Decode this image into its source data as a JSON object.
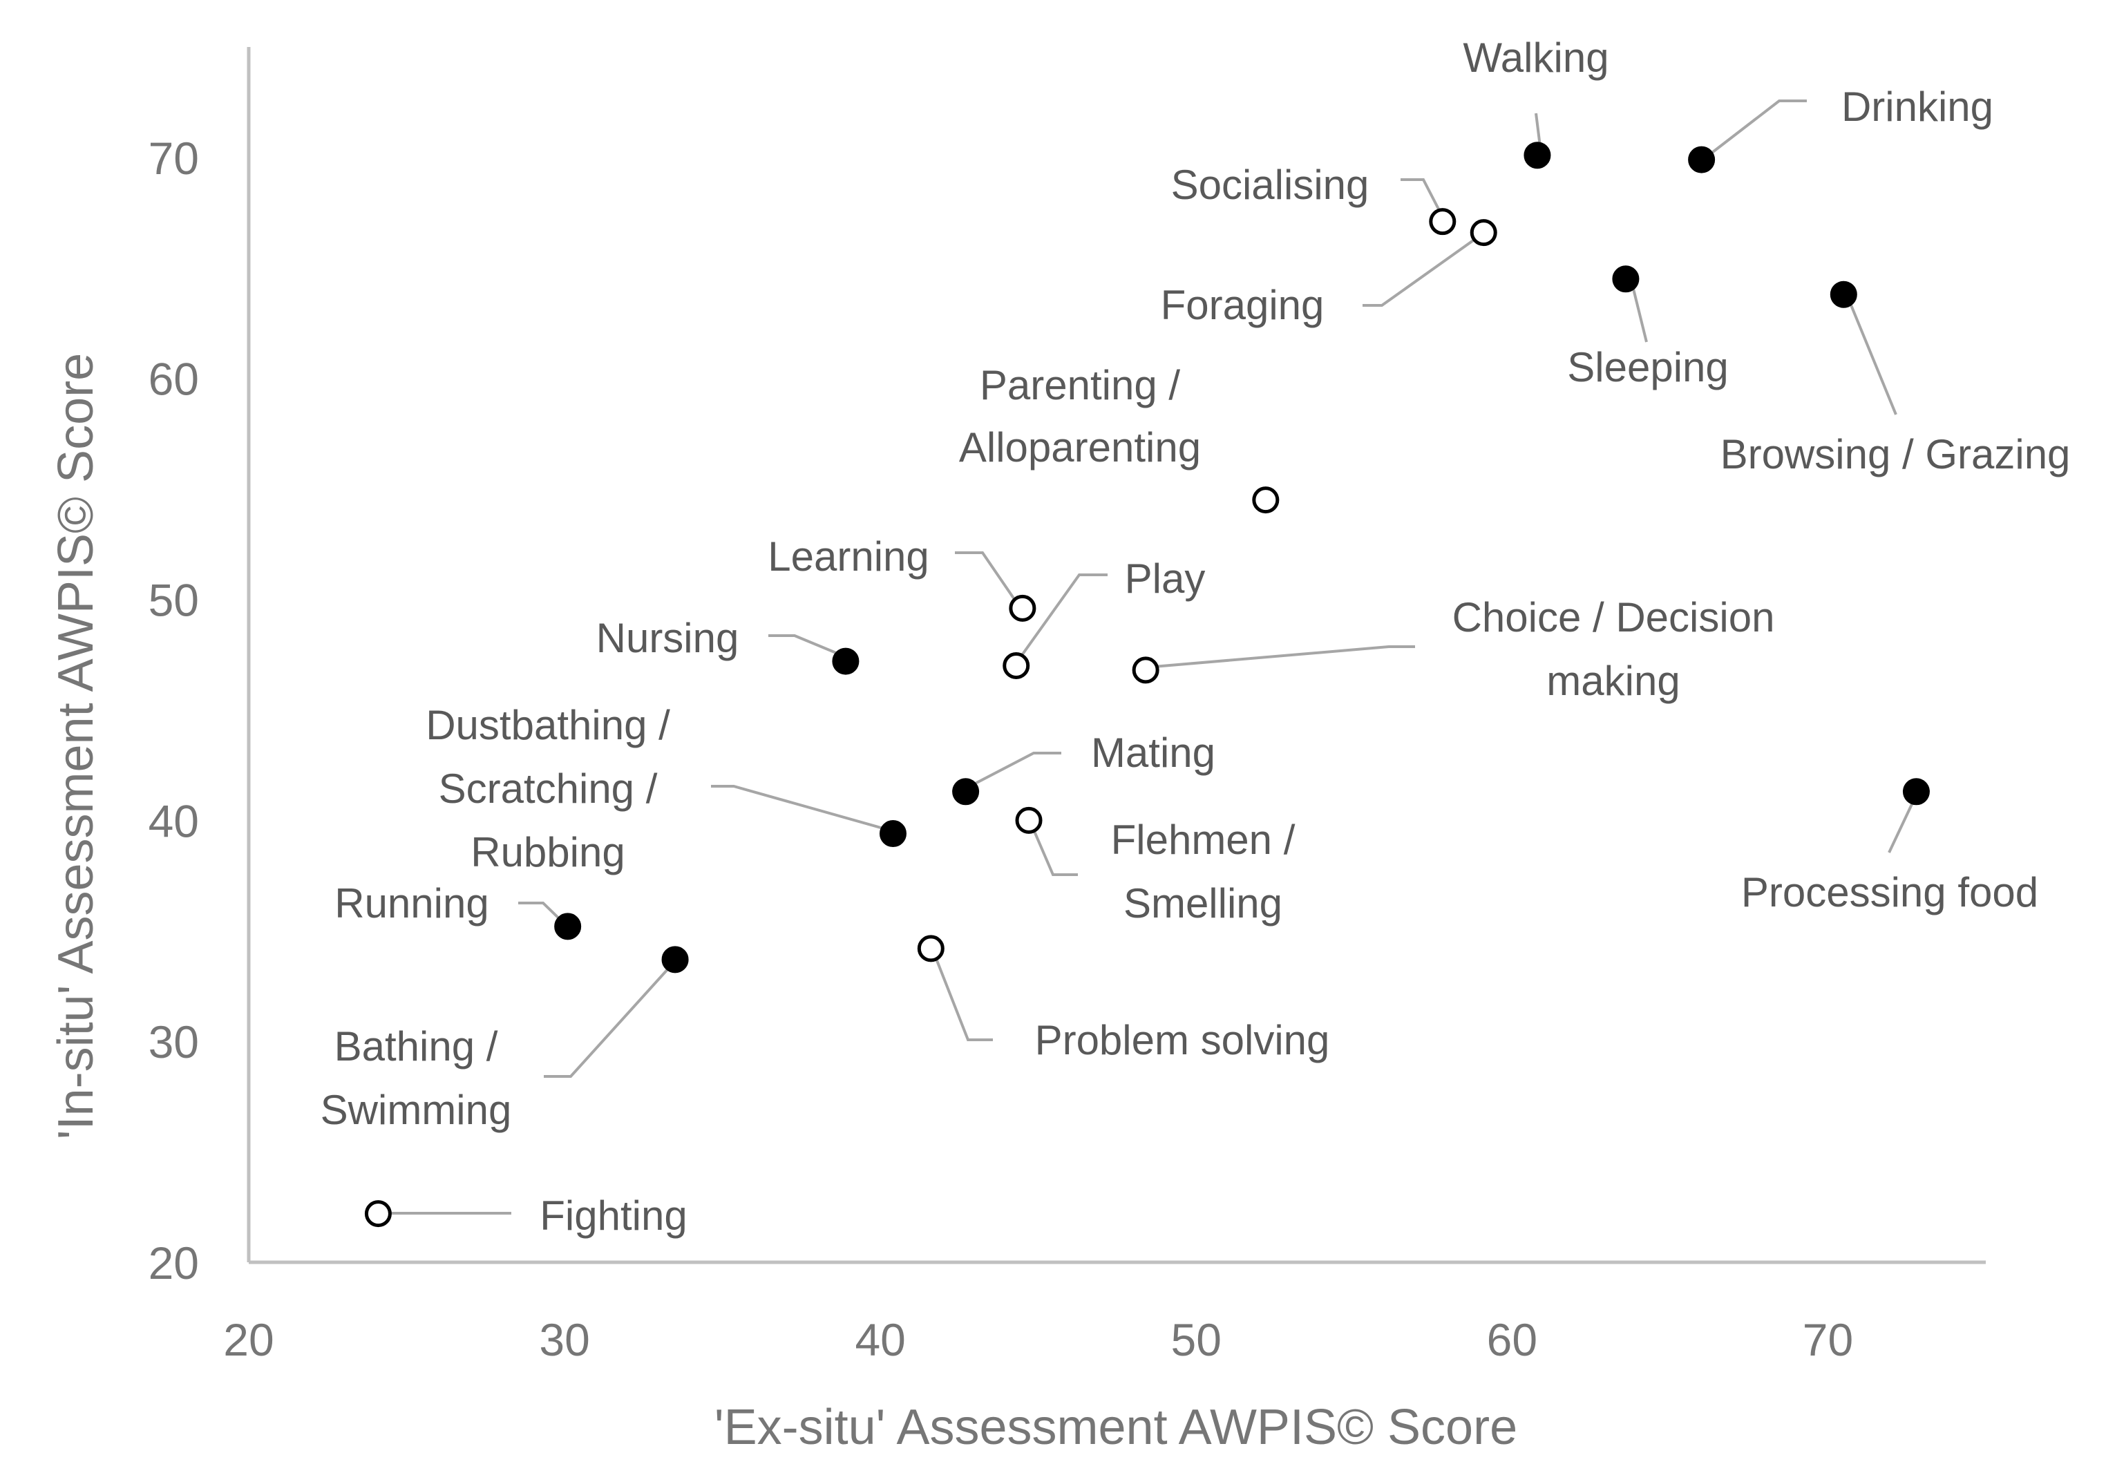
{
  "chart_data": {
    "type": "scatter",
    "title": "",
    "xlabel": "'Ex-situ' Assessment AWPIS© Score",
    "ylabel": "'In-situ' Assessment AWPIS© Score",
    "xlim": [
      20,
      75
    ],
    "ylim": [
      20,
      75
    ],
    "x_ticks": [
      "20",
      "30",
      "40",
      "50",
      "60",
      "70"
    ],
    "y_ticks": [
      "20",
      "30",
      "40",
      "50",
      "60",
      "70"
    ],
    "grid": false,
    "legend": "none",
    "marker_styles": {
      "filled": "#000000",
      "open": "#ffffff",
      "edge": "#000000",
      "leader": "#a6a6a6"
    },
    "points": [
      {
        "label": "Walking",
        "x": 60.8,
        "y": 70.1,
        "filled": true
      },
      {
        "label": "Drinking",
        "x": 66.0,
        "y": 69.9,
        "filled": true
      },
      {
        "label": "Socialising",
        "x": 57.8,
        "y": 67.1,
        "filled": false
      },
      {
        "label": "Foraging",
        "x": 59.1,
        "y": 66.6,
        "filled": false
      },
      {
        "label": "Sleeping",
        "x": 63.6,
        "y": 64.5,
        "filled": true
      },
      {
        "label": "Browsing / Grazing",
        "x": 70.5,
        "y": 63.8,
        "filled": true
      },
      {
        "label": "Parenting / Alloparenting",
        "x": 52.2,
        "y": 54.5,
        "filled": false
      },
      {
        "label": "Learning",
        "x": 44.5,
        "y": 49.6,
        "filled": false
      },
      {
        "label": "Play",
        "x": 44.3,
        "y": 47.0,
        "filled": false
      },
      {
        "label": "Nursing",
        "x": 38.9,
        "y": 47.2,
        "filled": true
      },
      {
        "label": "Choice / Decision making",
        "x": 48.4,
        "y": 46.8,
        "filled": false
      },
      {
        "label": "Mating",
        "x": 42.7,
        "y": 41.3,
        "filled": true
      },
      {
        "label": "Processing food",
        "x": 72.8,
        "y": 41.3,
        "filled": true
      },
      {
        "label": "Dustbathing / Scratching / Rubbing",
        "x": 40.4,
        "y": 39.4,
        "filled": true
      },
      {
        "label": "Flehmen / Smelling",
        "x": 44.7,
        "y": 40.0,
        "filled": false
      },
      {
        "label": "Running",
        "x": 30.1,
        "y": 35.2,
        "filled": true
      },
      {
        "label": "Bathing / Swimming",
        "x": 33.5,
        "y": 33.7,
        "filled": true
      },
      {
        "label": "Problem solving",
        "x": 41.6,
        "y": 34.2,
        "filled": false
      },
      {
        "label": "Fighting",
        "x": 24.1,
        "y": 22.2,
        "filled": false
      }
    ]
  }
}
